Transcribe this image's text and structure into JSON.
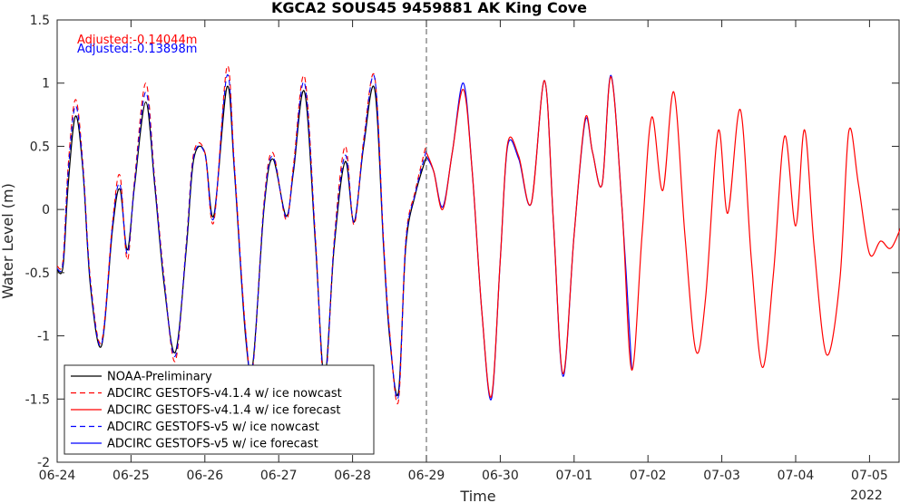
{
  "chart_data": {
    "type": "line",
    "title": "KGCA2 SOUS45 9459881 AK King Cove",
    "xlabel": "Time",
    "ylabel": "Water Level (m)",
    "year_label": "2022",
    "x_ticks": [
      "06-24",
      "06-25",
      "06-26",
      "06-27",
      "06-28",
      "06-29",
      "06-30",
      "07-01",
      "07-02",
      "07-03",
      "07-04",
      "07-05"
    ],
    "y_ticks": [
      "-2",
      "-1.5",
      "-1",
      "-0.5",
      "0",
      "0.5",
      "1",
      "1.5"
    ],
    "xlim": [
      0,
      11.5
    ],
    "ylim": [
      -2,
      1.5
    ],
    "grid": false,
    "nowcast_end_day": 5,
    "annotations": [
      {
        "text": "Adjusted:-0.14044m",
        "color": "#ff0000"
      },
      {
        "text": "Adjusted:-0.13898m",
        "color": "#0000ff"
      }
    ],
    "legend": {
      "position": "bottom-left",
      "entries": [
        {
          "label": "NOAA-Preliminary",
          "color": "#000000",
          "style": "solid"
        },
        {
          "label": "ADCIRC GESTOFS-v4.1.4 w/ ice nowcast",
          "color": "#ff0000",
          "style": "dashed"
        },
        {
          "label": "ADCIRC GESTOFS-v4.1.4 w/ ice forecast",
          "color": "#ff0000",
          "style": "solid"
        },
        {
          "label": "ADCIRC GESTOFS-v5 w/ ice nowcast",
          "color": "#0000ff",
          "style": "dashed"
        },
        {
          "label": "ADCIRC GESTOFS-v5 w/ ice forecast",
          "color": "#0000ff",
          "style": "solid"
        }
      ]
    },
    "series": [
      {
        "name": "NOAA-Preliminary",
        "color": "#000000",
        "style": "solid",
        "x": [
          0,
          0.08,
          0.15,
          0.25,
          0.35,
          0.45,
          0.6,
          0.75,
          0.85,
          0.95,
          1.05,
          1.2,
          1.32,
          1.45,
          1.6,
          1.75,
          1.85,
          2.0,
          2.12,
          2.3,
          2.4,
          2.55,
          2.65,
          2.8,
          2.92,
          3.1,
          3.2,
          3.35,
          3.5,
          3.62,
          3.75,
          3.9,
          4.02,
          4.15,
          4.3,
          4.42,
          4.5,
          4.62,
          4.72,
          4.85,
          5.0
        ],
        "y": [
          -0.48,
          -0.45,
          0.2,
          0.74,
          0.3,
          -0.6,
          -1.08,
          -0.15,
          0.16,
          -0.32,
          0.2,
          0.85,
          0.2,
          -0.6,
          -1.13,
          -0.3,
          0.4,
          0.45,
          -0.05,
          0.97,
          0.3,
          -1.0,
          -1.22,
          0.0,
          0.4,
          -0.05,
          0.3,
          0.93,
          -0.3,
          -1.33,
          -0.3,
          0.38,
          -0.1,
          0.5,
          0.95,
          -0.3,
          -1.0,
          -1.45,
          -0.3,
          0.12,
          0.42
        ]
      },
      {
        "name": "ADCIRC GESTOFS-v4.1.4 w/ ice nowcast",
        "color": "#ff0000",
        "style": "dashed",
        "x": [
          0,
          0.08,
          0.15,
          0.25,
          0.35,
          0.45,
          0.6,
          0.75,
          0.85,
          0.95,
          1.05,
          1.2,
          1.32,
          1.45,
          1.6,
          1.75,
          1.85,
          2.0,
          2.12,
          2.3,
          2.4,
          2.55,
          2.65,
          2.8,
          2.92,
          3.1,
          3.2,
          3.35,
          3.5,
          3.62,
          3.75,
          3.9,
          4.02,
          4.15,
          4.3,
          4.42,
          4.5,
          4.62,
          4.72,
          4.85,
          5.0
        ],
        "y": [
          -0.45,
          -0.4,
          0.35,
          0.87,
          0.35,
          -0.55,
          -1.05,
          -0.1,
          0.27,
          -0.4,
          0.25,
          1.0,
          0.25,
          -0.55,
          -1.2,
          -0.25,
          0.45,
          0.45,
          -0.1,
          1.13,
          0.35,
          -0.95,
          -1.25,
          0.05,
          0.45,
          -0.08,
          0.35,
          1.05,
          -0.25,
          -1.4,
          -0.25,
          0.5,
          -0.12,
          0.55,
          1.05,
          -0.25,
          -0.95,
          -1.52,
          -0.25,
          0.15,
          0.52
        ]
      },
      {
        "name": "ADCIRC GESTOFS-v5 w/ ice nowcast",
        "color": "#0000ff",
        "style": "dashed",
        "x": [
          0,
          0.08,
          0.15,
          0.25,
          0.35,
          0.45,
          0.6,
          0.75,
          0.85,
          0.95,
          1.05,
          1.2,
          1.32,
          1.45,
          1.6,
          1.75,
          1.85,
          2.0,
          2.12,
          2.3,
          2.4,
          2.55,
          2.65,
          2.8,
          2.92,
          3.1,
          3.2,
          3.35,
          3.5,
          3.62,
          3.75,
          3.9,
          4.02,
          4.15,
          4.3,
          4.42,
          4.5,
          4.62,
          4.72,
          4.85,
          5.0
        ],
        "y": [
          -0.47,
          -0.42,
          0.3,
          0.82,
          0.32,
          -0.57,
          -1.07,
          -0.12,
          0.2,
          -0.35,
          0.22,
          0.93,
          0.22,
          -0.57,
          -1.16,
          -0.27,
          0.42,
          0.44,
          -0.07,
          1.06,
          0.32,
          -0.97,
          -1.23,
          0.02,
          0.42,
          -0.06,
          0.32,
          1.0,
          -0.27,
          -1.36,
          -0.27,
          0.43,
          -0.1,
          0.52,
          1.04,
          -0.27,
          -0.97,
          -1.48,
          -0.27,
          0.13,
          0.47
        ]
      },
      {
        "name": "ADCIRC GESTOFS-v5 w/ ice forecast",
        "color": "#0000ff",
        "style": "solid",
        "x": [
          5.0,
          5.1,
          5.22,
          5.35,
          5.5,
          5.62,
          5.75,
          5.88,
          6.0,
          6.1,
          6.25,
          6.42,
          6.6,
          6.72,
          6.85,
          7.0,
          7.15,
          7.25,
          7.38,
          7.5,
          7.65,
          7.78
        ],
        "y": [
          0.42,
          0.3,
          0.02,
          0.45,
          1.0,
          0.3,
          -0.8,
          -1.5,
          -0.4,
          0.5,
          0.4,
          0.05,
          1.02,
          -0.1,
          -1.32,
          -0.2,
          0.7,
          0.45,
          0.2,
          1.06,
          0.0,
          -1.27
        ]
      },
      {
        "name": "ADCIRC GESTOFS-v4.1.4 w/ ice forecast",
        "color": "#ff0000",
        "style": "solid",
        "x": [
          5.0,
          5.1,
          5.22,
          5.35,
          5.5,
          5.62,
          5.75,
          5.88,
          6.0,
          6.1,
          6.25,
          6.42,
          6.6,
          6.72,
          6.85,
          7.0,
          7.15,
          7.25,
          7.38,
          7.5,
          7.65,
          7.78,
          7.92,
          8.05,
          8.2,
          8.35,
          8.5,
          8.65,
          8.78,
          8.95,
          9.08,
          9.25,
          9.4,
          9.55,
          9.7,
          9.85,
          10.0,
          10.12,
          10.25,
          10.42,
          10.6,
          10.72,
          10.85,
          11.0,
          11.15,
          11.3,
          11.5
        ],
        "y": [
          0.45,
          0.3,
          0.0,
          0.45,
          0.95,
          0.3,
          -0.8,
          -1.48,
          -0.4,
          0.52,
          0.42,
          0.05,
          1.02,
          -0.1,
          -1.3,
          -0.2,
          0.72,
          0.45,
          0.2,
          1.05,
          0.0,
          -1.27,
          -0.2,
          0.73,
          0.15,
          0.93,
          -0.2,
          -1.12,
          -0.7,
          0.62,
          -0.03,
          0.79,
          -0.4,
          -1.25,
          -0.5,
          0.58,
          -0.13,
          0.63,
          -0.3,
          -1.15,
          -0.55,
          0.62,
          0.2,
          -0.35,
          -0.25,
          -0.3,
          -0.02
        ]
      }
    ]
  }
}
